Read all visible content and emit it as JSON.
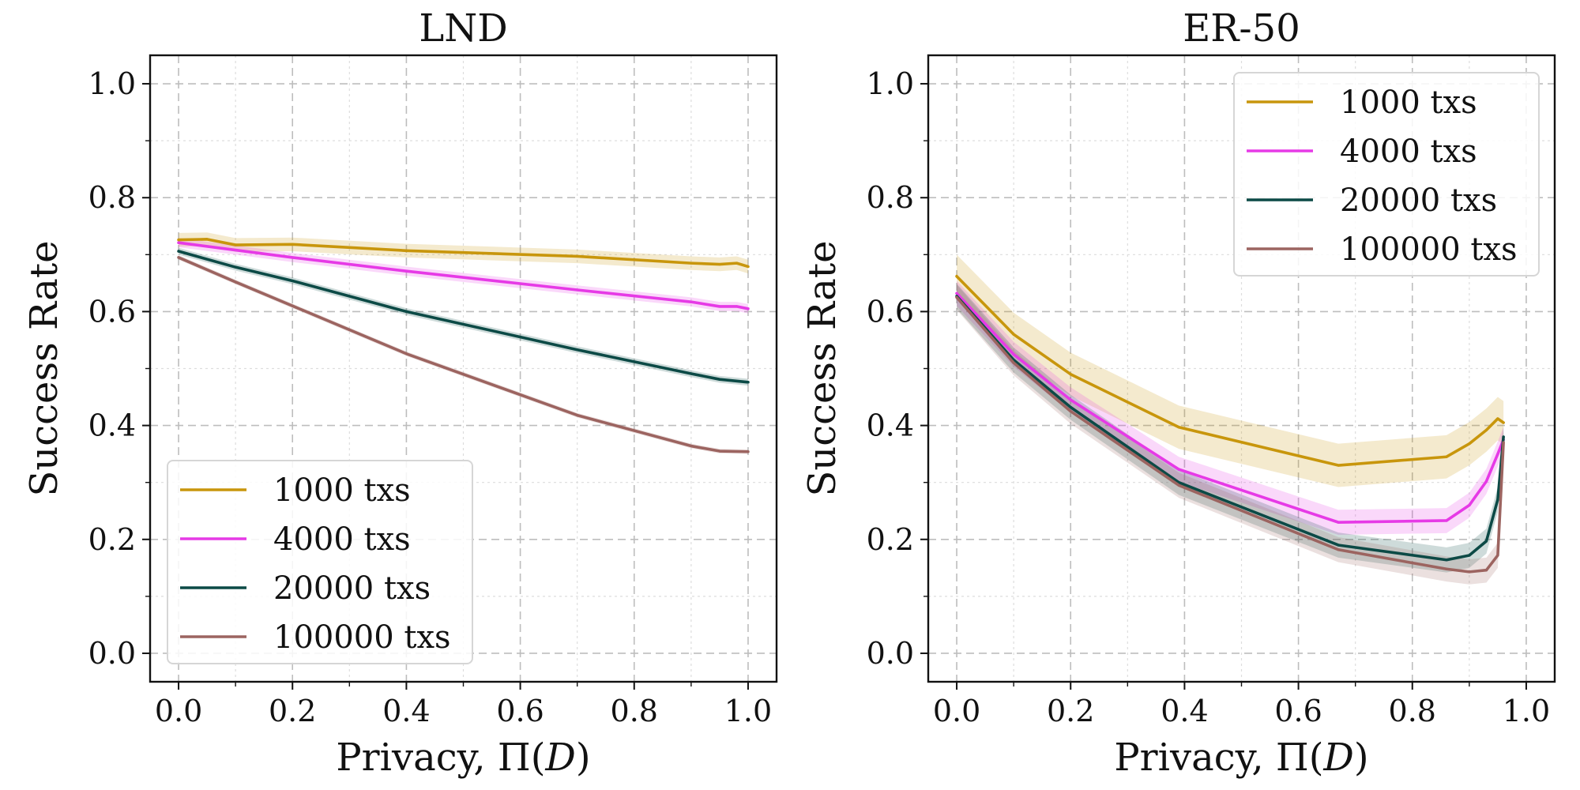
{
  "chart_data": [
    {
      "type": "line",
      "title": "LND",
      "xlabel": "Privacy, Π(D)",
      "xlabel_parts": [
        "Privacy, Π(",
        "D",
        ")"
      ],
      "ylabel": "Success Rate",
      "xlim": [
        -0.05,
        1.05
      ],
      "ylim": [
        -0.05,
        1.05
      ],
      "xticks": [
        0.0,
        0.2,
        0.4,
        0.6,
        0.8,
        1.0
      ],
      "xtick_labels": [
        "0.0",
        "0.2",
        "0.4",
        "0.6",
        "0.8",
        "1.0"
      ],
      "yticks": [
        0.0,
        0.2,
        0.4,
        0.6,
        0.8,
        1.0
      ],
      "ytick_labels": [
        "0.0",
        "0.2",
        "0.4",
        "0.6",
        "0.8",
        "1.0"
      ],
      "grid": true,
      "legend_position": "lower-left",
      "series": [
        {
          "name": "1000 txs",
          "color": "#c8960c",
          "x": [
            0.0,
            0.05,
            0.1,
            0.2,
            0.4,
            0.7,
            0.9,
            0.95,
            0.98,
            1.0
          ],
          "y": [
            0.726,
            0.727,
            0.717,
            0.718,
            0.707,
            0.697,
            0.685,
            0.683,
            0.685,
            0.679
          ],
          "band": 0.012
        },
        {
          "name": "4000 txs",
          "color": "#e63ae6",
          "x": [
            0.0,
            0.1,
            0.2,
            0.4,
            0.7,
            0.9,
            0.95,
            0.98,
            1.0
          ],
          "y": [
            0.721,
            0.708,
            0.695,
            0.671,
            0.638,
            0.617,
            0.609,
            0.609,
            0.605
          ],
          "band": 0.008
        },
        {
          "name": "20000 txs",
          "color": "#0c4a46",
          "x": [
            0.0,
            0.1,
            0.2,
            0.4,
            0.7,
            0.9,
            0.95,
            1.0
          ],
          "y": [
            0.706,
            0.678,
            0.654,
            0.6,
            0.533,
            0.491,
            0.481,
            0.476
          ],
          "band": 0.006
        },
        {
          "name": "100000 txs",
          "color": "#9c6460",
          "x": [
            0.0,
            0.1,
            0.2,
            0.4,
            0.7,
            0.9,
            0.95,
            1.0
          ],
          "y": [
            0.695,
            0.652,
            0.61,
            0.526,
            0.418,
            0.364,
            0.355,
            0.354
          ],
          "band": 0.004
        }
      ]
    },
    {
      "type": "line",
      "title": "ER-50",
      "xlabel": "Privacy, Π(D)",
      "xlabel_parts": [
        "Privacy, Π(",
        "D",
        ")"
      ],
      "ylabel": "Success Rate",
      "xlim": [
        -0.05,
        1.05
      ],
      "ylim": [
        -0.05,
        1.05
      ],
      "xticks": [
        0.0,
        0.2,
        0.4,
        0.6,
        0.8,
        1.0
      ],
      "xtick_labels": [
        "0.0",
        "0.2",
        "0.4",
        "0.6",
        "0.8",
        "1.0"
      ],
      "yticks": [
        0.0,
        0.2,
        0.4,
        0.6,
        0.8,
        1.0
      ],
      "ytick_labels": [
        "0.0",
        "0.2",
        "0.4",
        "0.6",
        "0.8",
        "1.0"
      ],
      "grid": true,
      "legend_position": "upper-right",
      "series": [
        {
          "name": "1000 txs",
          "color": "#c8960c",
          "x": [
            0.0,
            0.1,
            0.2,
            0.39,
            0.67,
            0.86,
            0.9,
            0.93,
            0.95,
            0.96
          ],
          "y": [
            0.662,
            0.56,
            0.49,
            0.397,
            0.33,
            0.345,
            0.368,
            0.392,
            0.412,
            0.405
          ],
          "band": 0.038
        },
        {
          "name": "4000 txs",
          "color": "#e63ae6",
          "x": [
            0.0,
            0.1,
            0.2,
            0.39,
            0.67,
            0.86,
            0.9,
            0.93,
            0.95,
            0.96
          ],
          "y": [
            0.632,
            0.525,
            0.445,
            0.323,
            0.23,
            0.233,
            0.26,
            0.302,
            0.35,
            0.375
          ],
          "band": 0.022
        },
        {
          "name": "20000 txs",
          "color": "#0c4a46",
          "x": [
            0.0,
            0.1,
            0.2,
            0.39,
            0.67,
            0.86,
            0.9,
            0.93,
            0.95,
            0.96
          ],
          "y": [
            0.627,
            0.515,
            0.432,
            0.3,
            0.19,
            0.164,
            0.172,
            0.197,
            0.27,
            0.38
          ],
          "band": 0.022
        },
        {
          "name": "100000 txs",
          "color": "#9c6460",
          "x": [
            0.0,
            0.1,
            0.2,
            0.39,
            0.67,
            0.86,
            0.9,
            0.93,
            0.95,
            0.96
          ],
          "y": [
            0.625,
            0.51,
            0.425,
            0.295,
            0.182,
            0.148,
            0.143,
            0.146,
            0.172,
            0.37
          ],
          "band": 0.022
        }
      ]
    }
  ]
}
